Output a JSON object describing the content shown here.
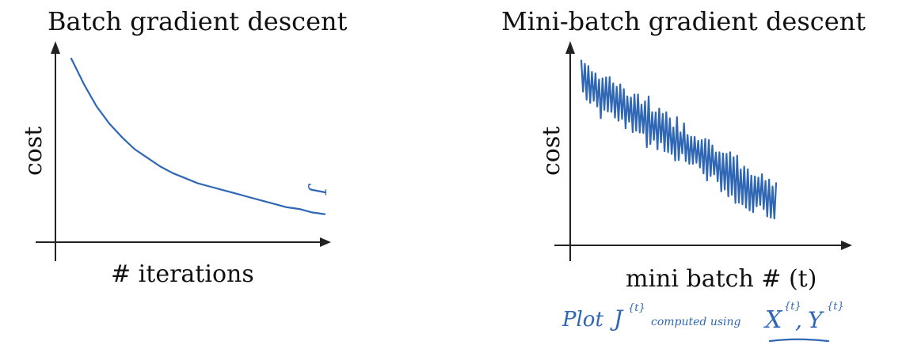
{
  "chart_data": [
    {
      "type": "line",
      "title": "Batch gradient descent",
      "xlabel": "# iterations",
      "ylabel": "cost",
      "grid": false,
      "annotation": "J",
      "series": [
        {
          "x": [
            0,
            0.05,
            0.1,
            0.15,
            0.2,
            0.25,
            0.3,
            0.35,
            0.4,
            0.45,
            0.5,
            0.55,
            0.6,
            0.65,
            0.7,
            0.75,
            0.8,
            0.85,
            0.9,
            0.95,
            1.0
          ],
          "values": [
            1.0,
            0.85,
            0.72,
            0.62,
            0.54,
            0.47,
            0.42,
            0.37,
            0.33,
            0.3,
            0.27,
            0.25,
            0.23,
            0.21,
            0.19,
            0.17,
            0.15,
            0.13,
            0.12,
            0.1,
            0.09
          ]
        }
      ]
    },
    {
      "type": "line",
      "title": "Mini-batch gradient descent",
      "xlabel": "mini batch # (t)",
      "ylabel": "cost",
      "grid": false,
      "annotation": "Plot J{t} computed using X{t}, Y{t}",
      "series": [
        {
          "trend_start": 0.9,
          "trend_end": 0.15,
          "noise": "high-frequency oscillation"
        }
      ]
    }
  ],
  "panel1": {
    "title": "Batch gradient descent",
    "ylabel": "cost",
    "xlabel": "# iterations",
    "note": "J"
  },
  "panel2": {
    "title": "Mini-batch gradient descent",
    "ylabel": "cost",
    "xlabel": "mini batch # (t)",
    "note_plot": "Plot",
    "note_j": "J",
    "note_sup": "{t}",
    "note_computed": "computed using",
    "note_x": "X",
    "note_y": "Y"
  },
  "colors": {
    "ink": "#2f67b5",
    "axis": "#222222"
  }
}
